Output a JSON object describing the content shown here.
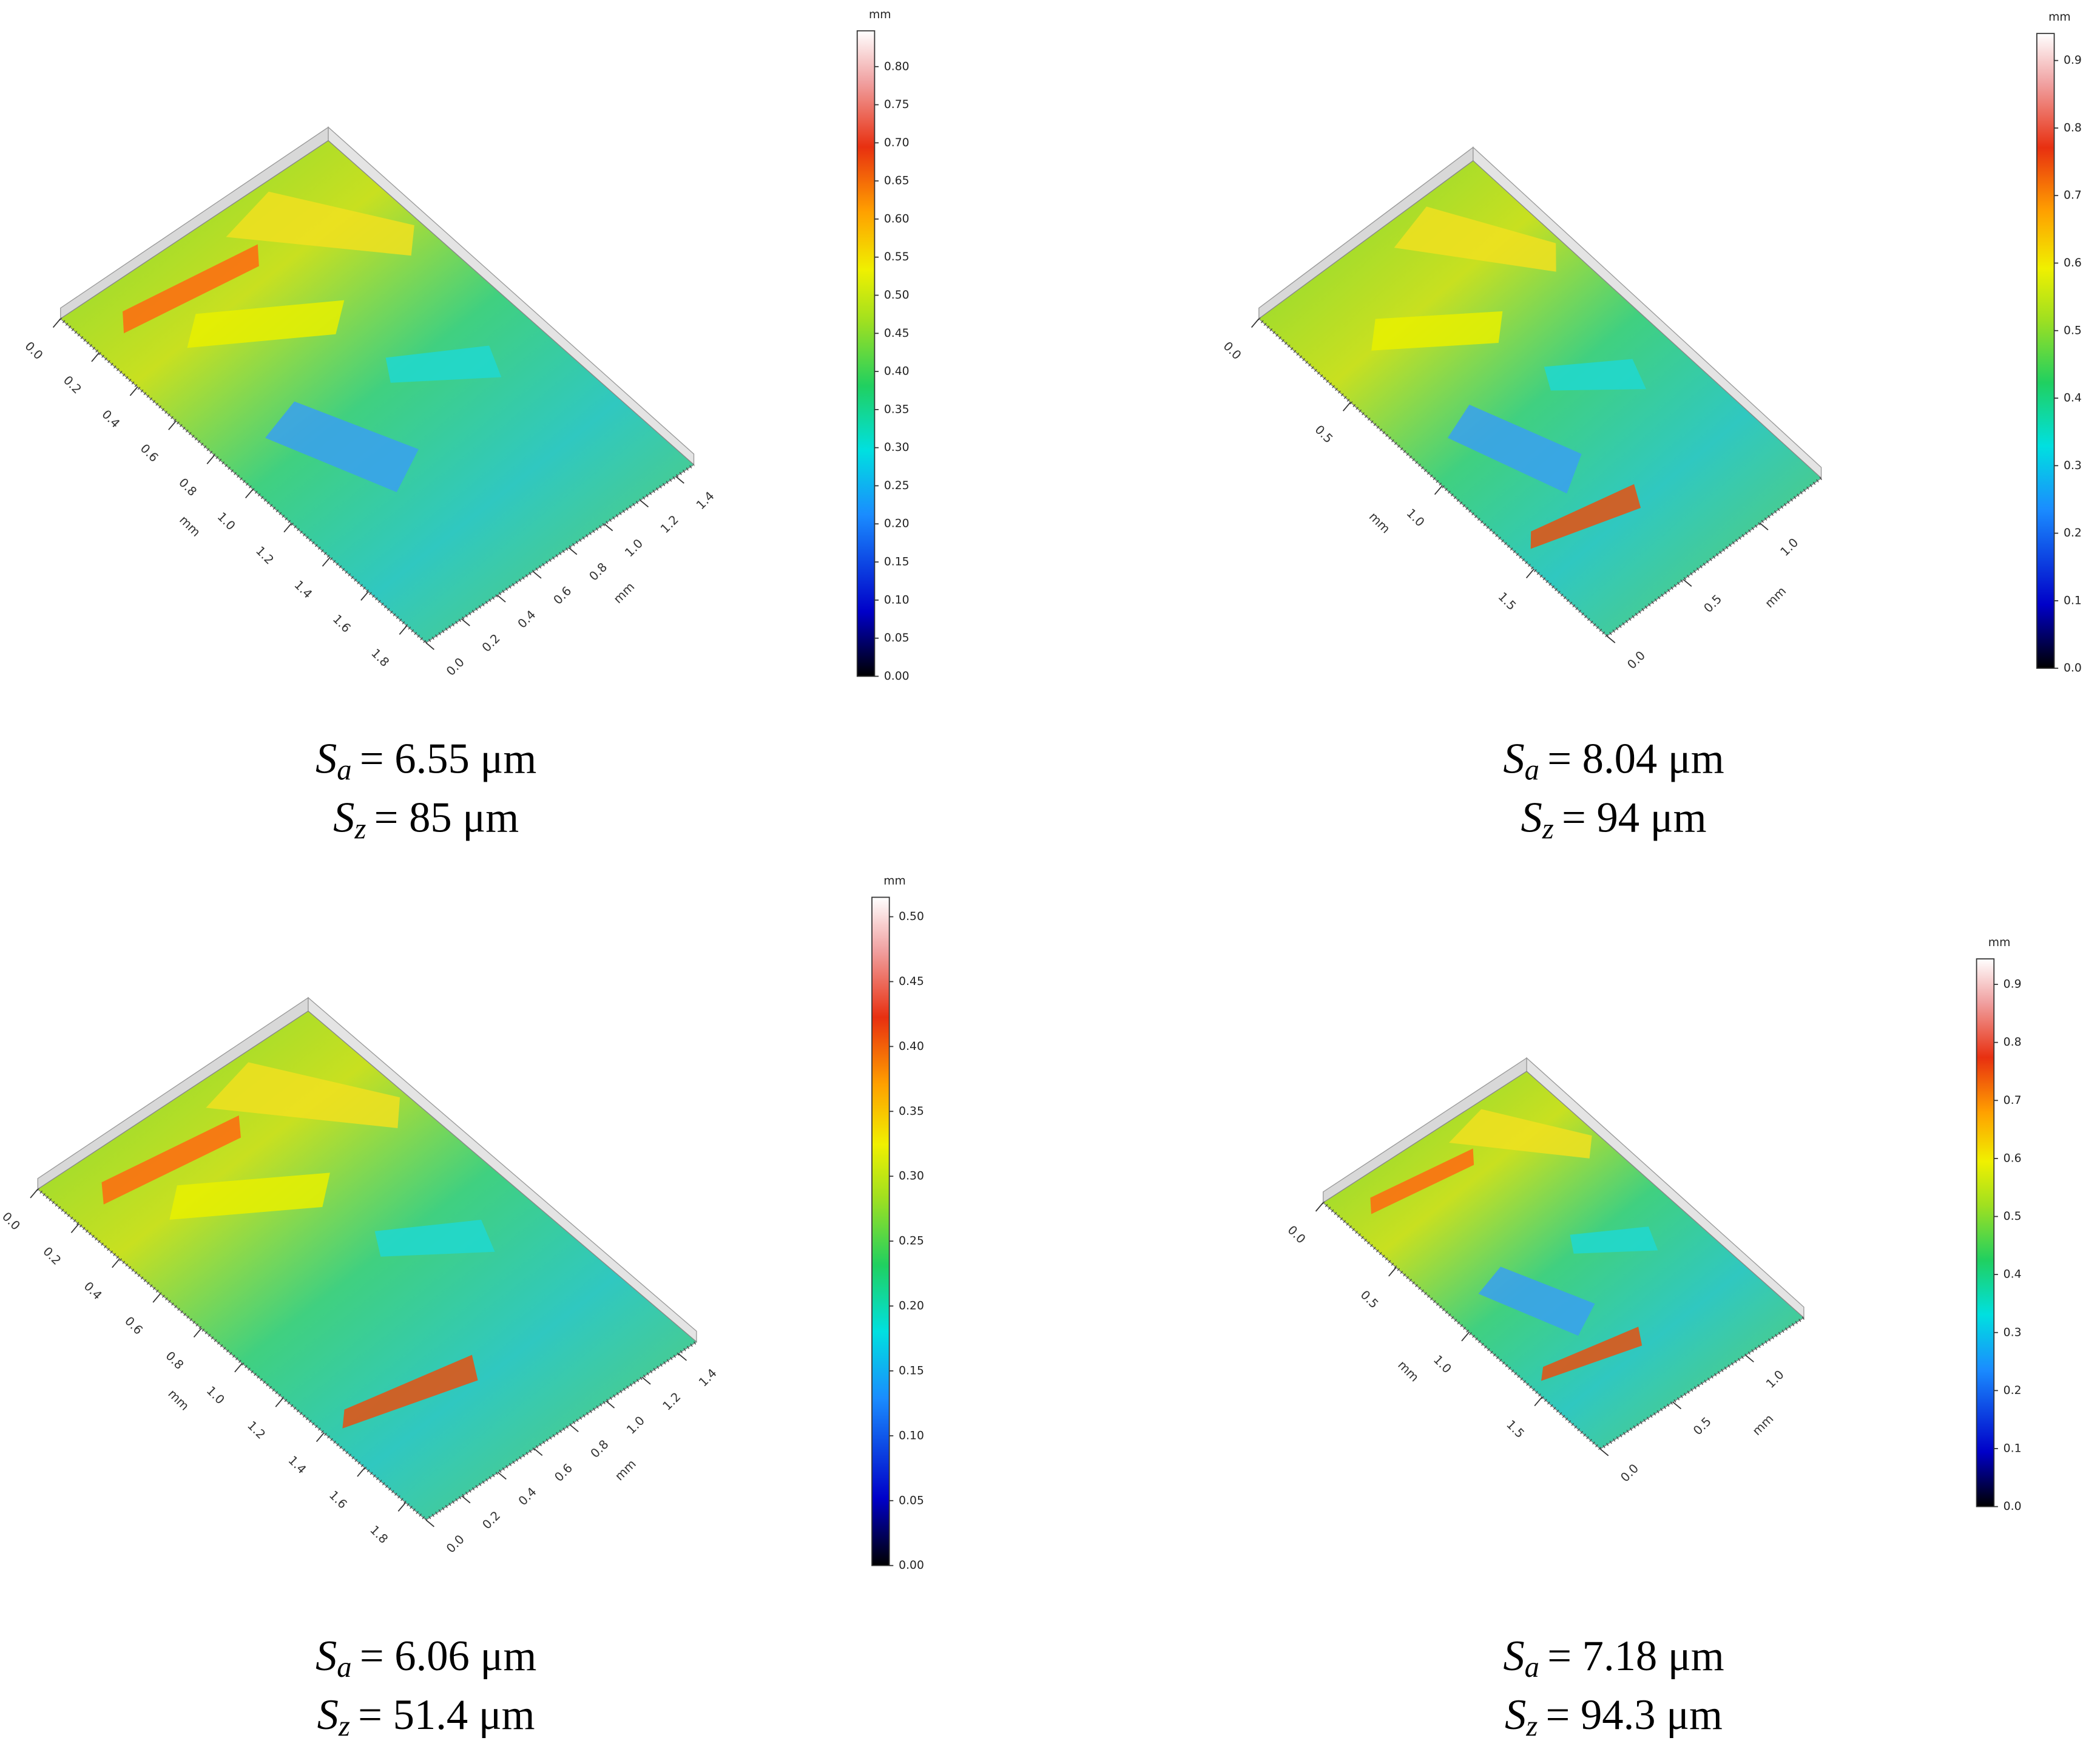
{
  "panels": [
    {
      "colorbar": {
        "unit": "mm",
        "lim": [
          0,
          0.847
        ],
        "ticks": [
          {
            "value": 0,
            "label": "0.00"
          },
          0.05,
          {
            "value": 0.1,
            "label": "0.10"
          },
          0.15,
          {
            "value": 0.2,
            "label": "0.20"
          },
          0.25,
          {
            "value": 0.3,
            "label": "0.30"
          },
          0.35,
          {
            "value": 0.4,
            "label": "0.40"
          },
          0.45,
          {
            "value": 0.5,
            "label": "0.50"
          },
          0.55,
          {
            "value": 0.6,
            "label": "0.60"
          },
          0.65,
          {
            "value": 0.7,
            "label": "0.70"
          },
          0.75,
          {
            "value": 0.8,
            "label": "0.80"
          }
        ]
      },
      "axes": [
        {
          "label": "mm",
          "lim": [
            0,
            1.9
          ],
          "ticks": [
            {
              "value": 0,
              "label": "0.0"
            },
            0.2,
            0.4,
            0.6,
            0.8,
            {
              "value": 1,
              "label": "1.0"
            },
            1.2,
            1.4,
            1.6,
            1.8
          ]
        },
        {
          "label": "mm",
          "lim": [
            0,
            1.5
          ],
          "ticks": [
            {
              "value": 0,
              "label": "0.0"
            },
            0.2,
            0.4,
            0.6,
            0.8,
            {
              "value": 1,
              "label": "1.0"
            },
            1.2,
            1.4
          ]
        }
      ],
      "caption": [
        {
          "symbol": "S",
          "sub": "a",
          "text": "= 6.55 μm"
        },
        {
          "symbol": "S",
          "sub": "z",
          "text": "= 85 μm"
        }
      ]
    },
    {
      "colorbar": {
        "unit": "mm",
        "lim": [
          0,
          0.94
        ],
        "ticks": [
          {
            "value": 0,
            "label": "0.0"
          },
          0.1,
          0.2,
          0.3,
          0.4,
          0.5,
          0.6,
          0.7,
          0.8,
          0.9
        ]
      },
      "axes": [
        {
          "label": "mm",
          "lim": [
            0,
            1.9
          ],
          "ticks": [
            {
              "value": 0,
              "label": "0.0"
            },
            0.5,
            {
              "value": 1,
              "label": "1.0"
            },
            1.5
          ]
        },
        {
          "label": "mm",
          "lim": [
            0,
            1.4
          ],
          "ticks": [
            {
              "value": 0,
              "label": "0.0"
            },
            0.5,
            {
              "value": 1,
              "label": "1.0"
            }
          ]
        }
      ],
      "caption": [
        {
          "symbol": "S",
          "sub": "a",
          "text": "= 8.04 μm"
        },
        {
          "symbol": "S",
          "sub": "z",
          "text": "= 94 μm"
        }
      ]
    },
    {
      "colorbar": {
        "unit": "mm",
        "lim": [
          0,
          0.515
        ],
        "ticks": [
          {
            "value": 0,
            "label": "0.00"
          },
          0.05,
          {
            "value": 0.1,
            "label": "0.10"
          },
          0.15,
          {
            "value": 0.2,
            "label": "0.20"
          },
          0.25,
          {
            "value": 0.3,
            "label": "0.30"
          },
          0.35,
          {
            "value": 0.4,
            "label": "0.40"
          },
          0.45,
          {
            "value": 0.5,
            "label": "0.50"
          }
        ]
      },
      "axes": [
        {
          "label": "mm",
          "lim": [
            0,
            1.9
          ],
          "ticks": [
            {
              "value": 0,
              "label": "0.0"
            },
            0.2,
            0.4,
            0.6,
            0.8,
            {
              "value": 1,
              "label": "1.0"
            },
            1.2,
            1.4,
            1.6,
            1.8
          ]
        },
        {
          "label": "mm",
          "lim": [
            0,
            1.5
          ],
          "ticks": [
            {
              "value": 0,
              "label": "0.0"
            },
            0.2,
            0.4,
            0.6,
            0.8,
            {
              "value": 1,
              "label": "1.0"
            },
            1.2,
            1.4
          ]
        }
      ],
      "caption": [
        {
          "symbol": "S",
          "sub": "a",
          "text": "= 6.06 μm"
        },
        {
          "symbol": "S",
          "sub": "z",
          "text": "= 51.4 μm"
        }
      ]
    },
    {
      "colorbar": {
        "unit": "mm",
        "lim": [
          0,
          0.944
        ],
        "ticks": [
          {
            "value": 0,
            "label": "0.0"
          },
          0.1,
          0.2,
          0.3,
          0.4,
          0.5,
          0.6,
          0.7,
          0.8,
          0.9
        ]
      },
      "axes": [
        {
          "label": "mm",
          "lim": [
            0,
            1.9
          ],
          "ticks": [
            {
              "value": 0,
              "label": "0.0"
            },
            0.5,
            {
              "value": 1,
              "label": "1.0"
            },
            1.5
          ]
        },
        {
          "label": "mm",
          "lim": [
            0,
            1.4
          ],
          "ticks": [
            {
              "value": 0,
              "label": "0.0"
            },
            0.5,
            {
              "value": 1,
              "label": "1.0"
            }
          ]
        }
      ],
      "caption": [
        {
          "symbol": "S",
          "sub": "a",
          "text": "= 7.18 μm"
        },
        {
          "symbol": "S",
          "sub": "z",
          "text": "= 94.3 μm"
        }
      ]
    }
  ]
}
